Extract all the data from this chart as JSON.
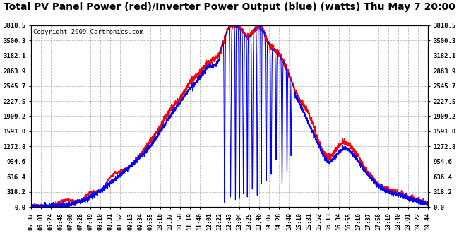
{
  "title": "Total PV Panel Power (red)/Inverter Power Output (blue) (watts) Thu May 7 20:00",
  "copyright": "Copyright 2009 Cartronics.com",
  "yticks": [
    0.0,
    318.2,
    636.4,
    954.6,
    1272.8,
    1591.0,
    1909.2,
    2227.5,
    2545.7,
    2863.9,
    3182.1,
    3500.3,
    3818.5
  ],
  "xtick_labels": [
    "05:37",
    "06:01",
    "06:24",
    "06:45",
    "07:06",
    "07:28",
    "07:49",
    "08:10",
    "08:31",
    "08:52",
    "09:13",
    "09:34",
    "09:55",
    "10:16",
    "10:37",
    "10:58",
    "11:19",
    "11:40",
    "12:01",
    "12:22",
    "12:43",
    "13:04",
    "13:25",
    "13:46",
    "14:07",
    "14:28",
    "14:49",
    "15:10",
    "15:31",
    "15:52",
    "16:13",
    "16:34",
    "16:55",
    "17:16",
    "17:37",
    "17:58",
    "18:19",
    "18:40",
    "19:01",
    "19:22",
    "19:44"
  ],
  "ymin": 0.0,
  "ymax": 3818.5,
  "bg_color": "#ffffff",
  "plot_bg_color": "#ffffff",
  "grid_color": "#bbbbbb",
  "line_red": "red",
  "line_blue": "blue",
  "title_fontsize": 10,
  "copyright_fontsize": 6.5
}
